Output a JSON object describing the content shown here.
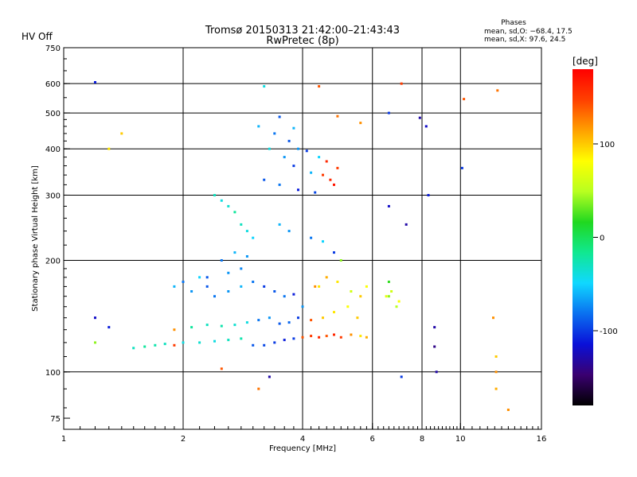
{
  "status_label": "HV Off",
  "status_color": "#d01010",
  "chart_data": {
    "type": "scatter",
    "title": "Tromsø 20150313 21:42:00–21:43:43",
    "subtitle": "RwPretec (8p)",
    "xlabel": "Frequency [MHz]",
    "ylabel": "Stationary phase Virtual Height [km]",
    "x_scale": "log",
    "y_scale": "log",
    "xlim": [
      1,
      16
    ],
    "ylim": [
      70,
      750
    ],
    "x_ticks": [
      1,
      2,
      4,
      6,
      8,
      10,
      16
    ],
    "x_tick_labels": [
      "1",
      "2",
      "4",
      "6",
      "8",
      "10",
      "16"
    ],
    "y_ticks": [
      75,
      100,
      200,
      300,
      400,
      500,
      600,
      750
    ],
    "y_tick_labels": [
      "75",
      "100",
      "200",
      "300",
      "400",
      "500",
      "600",
      "750"
    ],
    "x_gridlines": [
      2,
      4,
      6,
      8,
      10
    ],
    "y_gridlines": [
      100,
      200,
      300,
      400,
      500,
      600
    ],
    "grid": true,
    "stats": {
      "header": "Phases",
      "line_o": "mean, sd,O: −68.4, 17.5",
      "line_x": "mean, sd,X:  97.6, 24.5"
    },
    "colorbar": {
      "label": "[deg]",
      "range": [
        -180,
        180
      ],
      "ticks": [
        100,
        0,
        -100
      ],
      "tick_labels": [
        "100",
        "0",
        "-100"
      ],
      "colors": [
        "#000000",
        "#3a0070",
        "#0a10d8",
        "#0a70f0",
        "#10d8ff",
        "#10e890",
        "#20d820",
        "#b8ff20",
        "#ffff00",
        "#ffa000",
        "#ff4000",
        "#ff0000"
      ]
    },
    "series": [
      {
        "x": [
          1.2,
          3.2,
          3.5,
          3.8,
          4.4,
          4.9,
          5.6,
          6.6,
          7.1,
          7.9
        ],
        "y": [
          605,
          590,
          488,
          455,
          590,
          490,
          470,
          500,
          600,
          485
        ],
        "phase": [
          -110,
          -40,
          -90,
          -60,
          140,
          130,
          120,
          -100,
          150,
          -130
        ]
      },
      {
        "x": [
          3.1,
          3.4,
          3.7,
          3.9,
          4.1,
          4.4,
          4.6,
          4.9,
          3.3,
          3.6,
          3.8,
          4.2,
          4.5,
          4.7,
          3.2,
          3.5,
          3.9,
          4.3,
          4.8,
          6.6,
          7.3,
          8.3
        ],
        "y": [
          460,
          440,
          420,
          400,
          395,
          380,
          370,
          355,
          400,
          380,
          360,
          345,
          340,
          330,
          330,
          320,
          310,
          305,
          320,
          280,
          250,
          300
        ],
        "phase": [
          -60,
          -80,
          -90,
          -70,
          -100,
          -50,
          160,
          150,
          -40,
          -70,
          -100,
          -60,
          150,
          160,
          -90,
          -80,
          -110,
          -95,
          170,
          -120,
          -130,
          -110
        ]
      },
      {
        "x": [
          2.4,
          2.5,
          2.6,
          2.7,
          2.8,
          2.9,
          3.0,
          2.5,
          2.7,
          2.9,
          2.3,
          2.6,
          2.8,
          3.5,
          3.7,
          4.2,
          4.5,
          4.8,
          5.0
        ],
        "y": [
          300,
          290,
          280,
          270,
          250,
          240,
          230,
          200,
          210,
          205,
          180,
          185,
          190,
          250,
          240,
          230,
          225,
          210,
          200
        ],
        "phase": [
          -30,
          -40,
          -35,
          -20,
          -30,
          -40,
          -50,
          -80,
          -60,
          -70,
          -90,
          -70,
          -75,
          -60,
          -70,
          -80,
          -50,
          -100,
          40
        ]
      },
      {
        "x": [
          1.9,
          2.0,
          2.1,
          2.2,
          2.3,
          2.4,
          2.6,
          2.8,
          3.0,
          3.2,
          3.4,
          3.6,
          3.8,
          4.0,
          4.3,
          4.6,
          4.9,
          5.3,
          5.6,
          5.8,
          6.6
        ],
        "y": [
          170,
          175,
          165,
          180,
          170,
          160,
          165,
          170,
          175,
          170,
          165,
          160,
          162,
          150,
          170,
          180,
          175,
          165,
          160,
          170,
          160
        ],
        "phase": [
          -60,
          -80,
          -70,
          -50,
          -90,
          -80,
          -70,
          -60,
          -80,
          -100,
          -90,
          -80,
          -110,
          -70,
          120,
          110,
          90,
          60,
          100,
          80,
          40
        ]
      },
      {
        "x": [
          1.5,
          1.6,
          1.7,
          1.8,
          1.9,
          2.0,
          2.2,
          2.4,
          2.6,
          2.8,
          3.0,
          3.2,
          3.4,
          3.6,
          3.8,
          4.0,
          4.2,
          4.4,
          4.6,
          4.8,
          5.0,
          5.3,
          5.6,
          5.8
        ],
        "y": [
          116,
          117,
          118,
          119,
          118,
          120,
          120,
          121,
          122,
          123,
          118,
          118,
          120,
          122,
          123,
          124,
          125,
          124,
          125,
          126,
          124,
          126,
          125,
          124
        ],
        "phase": [
          -30,
          -20,
          -25,
          -30,
          150,
          -40,
          -35,
          -40,
          -30,
          -25,
          -90,
          -95,
          -100,
          -110,
          -100,
          140,
          150,
          160,
          140,
          160,
          150,
          120,
          90,
          110
        ]
      },
      {
        "x": [
          1.9,
          2.1,
          2.3,
          2.5,
          2.7,
          2.9,
          3.1,
          3.3,
          3.5,
          3.7,
          3.9,
          4.2,
          4.5,
          4.8,
          5.2,
          5.5
        ],
        "y": [
          130,
          132,
          134,
          133,
          134,
          136,
          138,
          140,
          135,
          136,
          140,
          138,
          140,
          145,
          150,
          140
        ],
        "phase": [
          120,
          -20,
          -30,
          -25,
          -35,
          -40,
          -80,
          -70,
          -90,
          -85,
          -100,
          140,
          100,
          90,
          80,
          100
        ]
      },
      {
        "x": [
          6.5,
          6.7,
          6.9,
          7.0,
          6.6
        ],
        "y": [
          160,
          165,
          150,
          155,
          175
        ],
        "phase": [
          70,
          60,
          50,
          80,
          20
        ]
      },
      {
        "x": [
          1.2,
          1.3,
          1.4,
          1.3,
          1.2,
          2.5,
          3.1,
          3.3,
          8.6,
          8.6,
          8.7,
          12.3,
          12.3,
          12.3,
          13.2,
          12.1,
          10.1,
          4.4,
          7.1,
          8.2,
          10.2,
          12.4
        ],
        "y": [
          140,
          132,
          440,
          400,
          120,
          102,
          90,
          97,
          132,
          117,
          100,
          100,
          90,
          110,
          79,
          140,
          355,
          170,
          97,
          460,
          545,
          575
        ],
        "phase": [
          -120,
          -110,
          100,
          90,
          40,
          140,
          130,
          -130,
          -130,
          -140,
          -130,
          120,
          110,
          100,
          120,
          120,
          -100,
          90,
          -100,
          -120,
          140,
          130
        ]
      }
    ]
  }
}
